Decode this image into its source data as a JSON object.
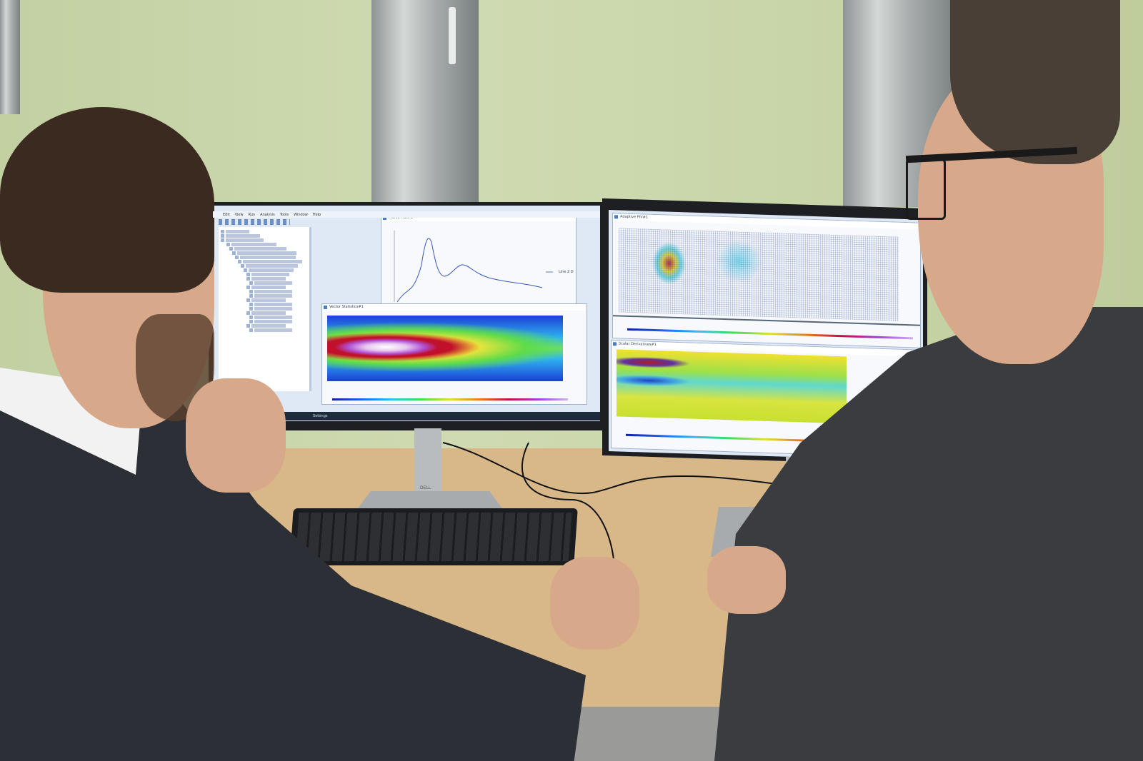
{
  "left_monitor": {
    "menu": [
      "Edit",
      "View",
      "Run",
      "Analysis",
      "Tools",
      "Window",
      "Help"
    ],
    "windows": {
      "profile_plot": {
        "title": "Profile Plot#1",
        "legend": "Line 2 D"
      },
      "vector_statistics": {
        "title": "Vector Statistics#1"
      }
    },
    "taskbar": {
      "item": "Settings"
    },
    "stand_brand": "DELL"
  },
  "right_monitor": {
    "windows": {
      "adaptive_piv": {
        "title": "Adaptive PIV#1"
      },
      "scalar_derivatives": {
        "title": "Scalar Derivatives#1"
      }
    }
  },
  "colors": {
    "wall": "#c9d6ab",
    "desk": "#d8b889",
    "suit": "#2c2f35",
    "screen_bg": "#dfe9f6"
  }
}
